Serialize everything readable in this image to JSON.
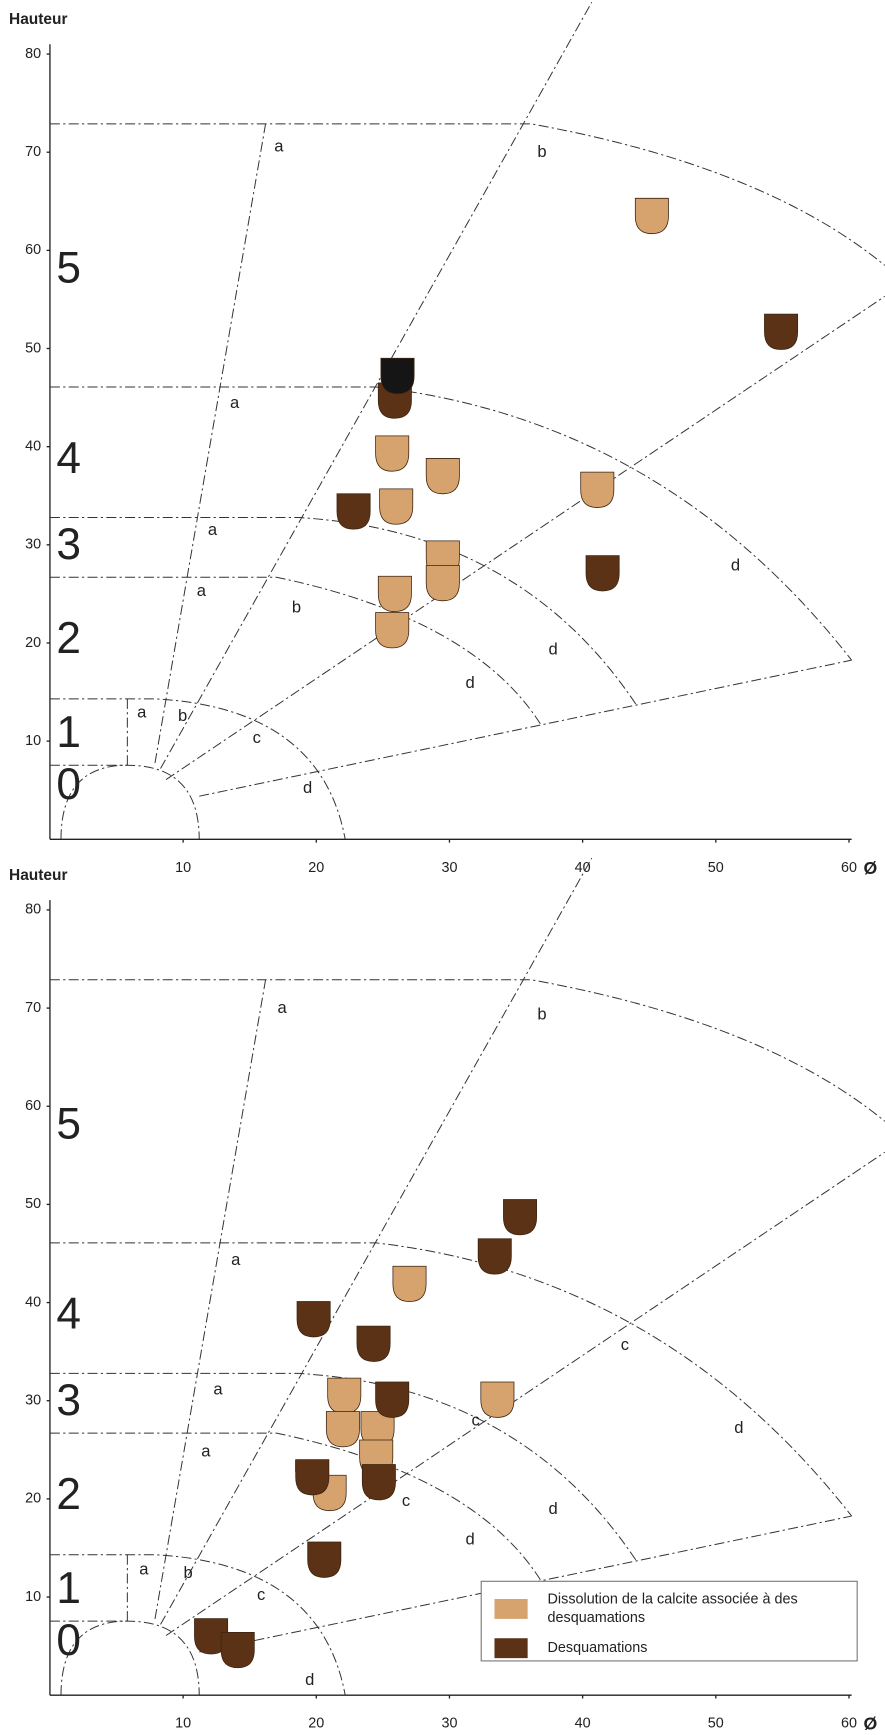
{
  "chart_data": [
    {
      "type": "scatter",
      "y_label": "Hauteur",
      "x_label": "Ø",
      "xlim": [
        0,
        60.2
      ],
      "ylim": [
        0,
        81
      ],
      "xticks": [
        10,
        20,
        30,
        40,
        50,
        60
      ],
      "yticks": [
        10,
        20,
        30,
        40,
        50,
        60,
        70,
        80
      ],
      "zone_labels": [
        "0",
        "1",
        "2",
        "3",
        "4",
        "5"
      ],
      "annotations": [
        "a",
        "a",
        "a",
        "a",
        "a",
        "b",
        "b",
        "b",
        "c",
        "d",
        "d",
        "d",
        "d"
      ],
      "series": [
        {
          "color": "#d6a36f",
          "x": [
            45.2,
            25.7,
            29.5,
            41.1,
            26,
            29.5,
            25.9,
            29.5,
            25.7
          ],
          "values": [
            63.5,
            39.3,
            37,
            35.6,
            33.9,
            28.6,
            25,
            26.1,
            21.3
          ]
        },
        {
          "color": "#5b3216",
          "x": [
            54.9,
            25.9,
            22.8,
            41.5
          ],
          "values": [
            51.7,
            44.7,
            33.4,
            27.1
          ]
        },
        {
          "color": "#151515",
          "x": [
            26.1
          ],
          "values": [
            47.2
          ]
        }
      ]
    },
    {
      "type": "scatter",
      "y_label": "Hauteur",
      "x_label": "Ø",
      "xlim": [
        0,
        60.2
      ],
      "ylim": [
        0,
        81
      ],
      "xticks": [
        10,
        20,
        30,
        40,
        50,
        60
      ],
      "yticks": [
        10,
        20,
        30,
        40,
        50,
        60,
        70,
        80
      ],
      "zone_labels": [
        "0",
        "1",
        "2",
        "3",
        "4",
        "5"
      ],
      "annotations": [
        "a",
        "a",
        "a",
        "a",
        "a",
        "b",
        "b",
        "b",
        "b",
        "c",
        "c",
        "c",
        "c",
        "d",
        "d",
        "d",
        "d"
      ],
      "legend": "lower right",
      "series": [
        {
          "name": "Dissolution de la calcite associée à des desquamations",
          "color": "#d6a36f",
          "x": [
            27,
            33.6,
            22.1,
            22,
            24.6,
            24.5,
            21
          ],
          "values": [
            41.9,
            30.1,
            30.5,
            27.1,
            27.1,
            24.2,
            20.6
          ]
        },
        {
          "name": "Desquamations",
          "color": "#5b3216",
          "x": [
            35.3,
            33.4,
            19.8,
            24.3,
            25.7,
            19.7,
            24.7,
            20.6,
            12.1,
            14.1
          ],
          "values": [
            48.7,
            44.7,
            38.3,
            35.8,
            30.1,
            22.2,
            21.7,
            13.8,
            6,
            4.6
          ]
        }
      ]
    }
  ]
}
